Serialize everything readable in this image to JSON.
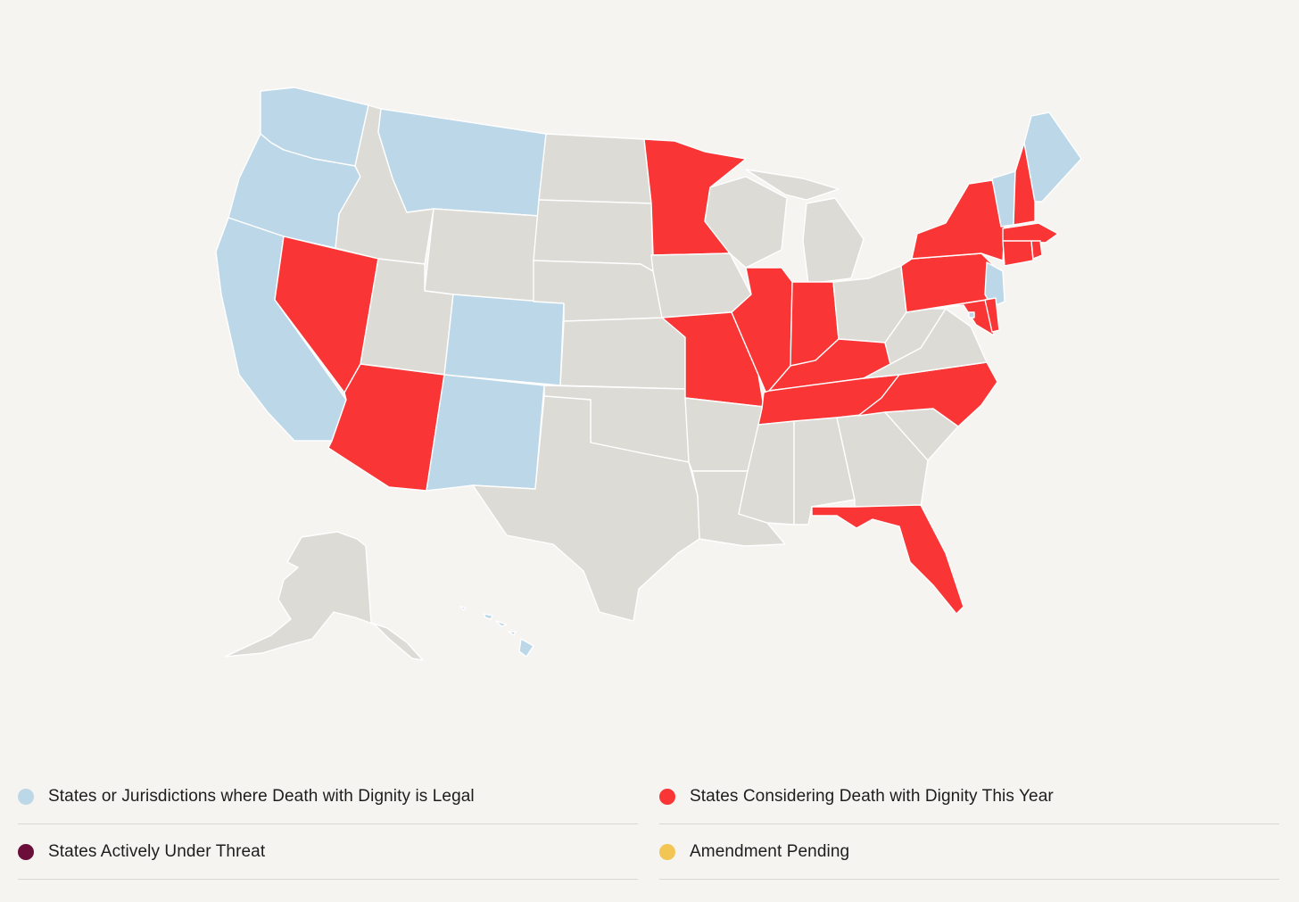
{
  "colors": {
    "legal": "#bcd7e8",
    "considering": "#f93535",
    "threat": "#6b0f3a",
    "pending": "#f3c553",
    "neutral": "#dcdbd5",
    "border": "#ffffff",
    "background": "#f5f4f1"
  },
  "legend": [
    {
      "label": "States or Jurisdictions where Death with Dignity is Legal",
      "status": "legal"
    },
    {
      "label": "States Considering Death with Dignity This Year",
      "status": "considering"
    },
    {
      "label": "States Actively Under Threat",
      "status": "threat"
    },
    {
      "label": "Amendment Pending",
      "status": "pending"
    }
  ],
  "states": {
    "WA": "legal",
    "OR": "legal",
    "CA": "legal",
    "MT": "legal",
    "CO": "legal",
    "NM": "legal",
    "HI": "legal",
    "VT": "legal",
    "ME": "legal",
    "NJ": "legal",
    "DC": "legal",
    "NV": "considering",
    "AZ": "considering",
    "MN": "considering",
    "MO": "considering",
    "IL": "considering",
    "IN": "considering",
    "KY": "considering",
    "TN": "considering",
    "NC": "considering",
    "FL": "considering",
    "NY": "considering",
    "PA": "considering",
    "MD": "considering",
    "DE": "considering",
    "NH": "considering",
    "MA": "considering",
    "CT": "considering",
    "RI": "considering",
    "ID": "none",
    "WY": "none",
    "UT": "none",
    "ND": "none",
    "SD": "none",
    "NE": "none",
    "KS": "none",
    "OK": "none",
    "TX": "none",
    "IA": "none",
    "AR": "none",
    "LA": "none",
    "WI": "none",
    "MI": "none",
    "OH": "none",
    "WV": "none",
    "VA": "none",
    "MS": "none",
    "AL": "none",
    "GA": "none",
    "SC": "none",
    "AK": "none"
  }
}
